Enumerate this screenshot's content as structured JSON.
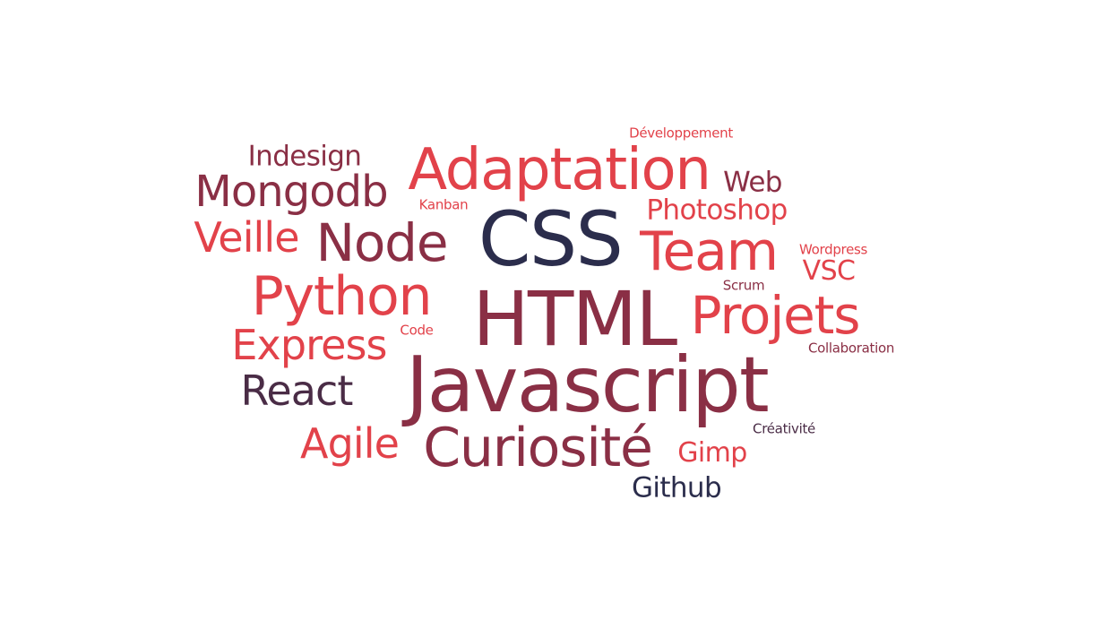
{
  "palette": {
    "navy": "#2b2d4c",
    "wine": "#8a2f45",
    "plum": "#4a2c46",
    "red": "#e2424a"
  },
  "words": [
    {
      "text": "Javascript",
      "color": "#8a2f45"
    },
    {
      "text": "HTML",
      "color": "#8a2f45"
    },
    {
      "text": "CSS",
      "color": "#2b2d4c"
    },
    {
      "text": "Adaptation",
      "color": "#e2424a"
    },
    {
      "text": "Team",
      "color": "#e2424a"
    },
    {
      "text": "Projets",
      "color": "#e2424a"
    },
    {
      "text": "Curiosité",
      "color": "#8a2f45"
    },
    {
      "text": "Python",
      "color": "#e2424a"
    },
    {
      "text": "Node",
      "color": "#8a2f45"
    },
    {
      "text": "Mongodb",
      "color": "#8a2f45"
    },
    {
      "text": "Express",
      "color": "#e2424a"
    },
    {
      "text": "Veille",
      "color": "#e2424a"
    },
    {
      "text": "React",
      "color": "#4a2c46"
    },
    {
      "text": "Agile",
      "color": "#e2424a"
    },
    {
      "text": "Indesign",
      "color": "#8a2f45"
    },
    {
      "text": "Photoshop",
      "color": "#e2424a"
    },
    {
      "text": "Web",
      "color": "#8a2f45"
    },
    {
      "text": "Github",
      "color": "#2b2d4c"
    },
    {
      "text": "Gimp",
      "color": "#e2424a"
    },
    {
      "text": "VSC",
      "color": "#e2424a"
    },
    {
      "text": "Développement",
      "color": "#e2424a"
    },
    {
      "text": "Wordpress",
      "color": "#e2424a"
    },
    {
      "text": "Collaboration",
      "color": "#8a2f45"
    },
    {
      "text": "Créativité",
      "color": "#4a2c46"
    },
    {
      "text": "Kanban",
      "color": "#e2424a"
    },
    {
      "text": "Scrum",
      "color": "#8a2f45"
    },
    {
      "text": "Code",
      "color": "#e2424a"
    }
  ]
}
